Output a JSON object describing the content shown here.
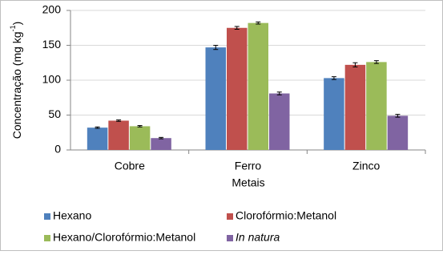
{
  "chart_data": {
    "type": "bar",
    "ylabel_parts": [
      "Concentração (mg kg",
      "-1",
      ")"
    ],
    "xlabel": "Metais",
    "categories": [
      "Cobre",
      "Ferro",
      "Zinco"
    ],
    "series": [
      {
        "name": "Hexano",
        "color": "#4f81bd",
        "values": [
          32,
          147,
          103
        ],
        "errors": [
          1,
          3,
          2
        ]
      },
      {
        "name": "Clorofórmio:Metanol",
        "color": "#c0504d",
        "values": [
          42,
          175,
          122
        ],
        "errors": [
          1,
          2,
          3
        ]
      },
      {
        "name": "Hexano/Clorofórmio:Metanol",
        "color": "#9bbb59",
        "values": [
          34,
          182,
          126
        ],
        "errors": [
          1,
          1.5,
          2
        ]
      },
      {
        "name": "In natura",
        "color": "#8064a2",
        "values": [
          17,
          81,
          49
        ],
        "errors": [
          1,
          2,
          2
        ]
      }
    ],
    "ylim": [
      0,
      200
    ],
    "yticks": [
      0,
      50,
      100,
      150,
      200
    ],
    "grid": true,
    "legend": "bottom"
  }
}
